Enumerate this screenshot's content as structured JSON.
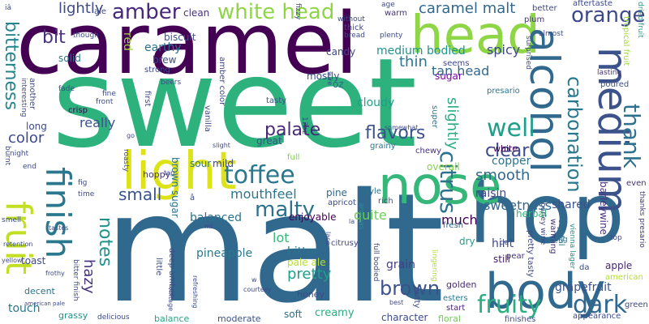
{
  "words": [
    {
      "text": "sweet",
      "color": "#2db27d"
    },
    {
      "text": "malt",
      "color": "#31688e"
    },
    {
      "text": "caramel",
      "color": "#440154"
    },
    {
      "text": "hop",
      "color": "#31688e"
    },
    {
      "text": "light",
      "color": "#dde318"
    },
    {
      "text": "head",
      "color": "#8ed645"
    },
    {
      "text": "nose",
      "color": "#35b779"
    },
    {
      "text": "body",
      "color": "#31688e"
    },
    {
      "text": "alcohol",
      "color": "#31688e"
    },
    {
      "text": "medium",
      "color": "#3b528b"
    },
    {
      "text": "fruit",
      "color": "#c2df23"
    },
    {
      "text": "finish",
      "color": "#2a788e"
    },
    {
      "text": "amber",
      "color": "#482878"
    },
    {
      "text": "white head",
      "color": "#8ed645"
    },
    {
      "text": "orange",
      "color": "#3e4a89"
    },
    {
      "text": "toffee",
      "color": "#2a788e"
    },
    {
      "text": "fruity",
      "color": "#29af7f"
    },
    {
      "text": "dark",
      "color": "#31688e"
    },
    {
      "text": "well",
      "color": "#1f9e89"
    },
    {
      "text": "thank",
      "color": "#2c728e"
    },
    {
      "text": "carbonation",
      "color": "#2a788e"
    },
    {
      "text": "caramel malt",
      "color": "#31688e"
    },
    {
      "text": "citrus",
      "color": "#2c728e"
    },
    {
      "text": "palate",
      "color": "#482878"
    },
    {
      "text": "brown",
      "color": "#3b528b"
    },
    {
      "text": "malty",
      "color": "#2c728e"
    },
    {
      "text": "bitterness",
      "color": "#25858e"
    },
    {
      "text": "flavors",
      "color": "#3b528b"
    },
    {
      "text": "clear",
      "color": "#3e4a89"
    },
    {
      "text": "notes",
      "color": "#20928c"
    },
    {
      "text": "small",
      "color": "#3b528b"
    },
    {
      "text": "color",
      "color": "#3e4a89"
    },
    {
      "text": "smooth",
      "color": "#31688e"
    },
    {
      "text": "pretty",
      "color": "#1f9e89"
    },
    {
      "text": "hazy",
      "color": "#46327e"
    },
    {
      "text": "thin",
      "color": "#2a788e"
    },
    {
      "text": "lightly",
      "color": "#3e4a89"
    },
    {
      "text": "bit",
      "color": "#46327e"
    },
    {
      "text": "mouthfeel",
      "color": "#2a788e"
    },
    {
      "text": "sweetness",
      "color": "#31688e"
    },
    {
      "text": "spicy",
      "color": "#3e4a89"
    },
    {
      "text": "tan head",
      "color": "#31688e"
    },
    {
      "text": "medium bodied",
      "color": "#20928c"
    },
    {
      "text": "slightly",
      "color": "#29af7f"
    },
    {
      "text": "really",
      "color": "#3b528b"
    },
    {
      "text": "balanced",
      "color": "#2c728e"
    },
    {
      "text": "lot",
      "color": "#35b779"
    },
    {
      "text": "much",
      "color": "#440154"
    },
    {
      "text": "quite",
      "color": "#6ece58"
    },
    {
      "text": "raisin",
      "color": "#3e4a89"
    },
    {
      "text": "cloudy",
      "color": "#1f9e89"
    },
    {
      "text": "copper",
      "color": "#2c728e"
    },
    {
      "text": "pineapple",
      "color": "#2a788e"
    },
    {
      "text": "bitter",
      "color": "#2c728e"
    },
    {
      "text": "hint",
      "color": "#3e4a89"
    },
    {
      "text": "grain",
      "color": "#433e85"
    },
    {
      "text": "grapefruit",
      "color": "#3b528b"
    },
    {
      "text": "barleywine",
      "color": "#46327e"
    },
    {
      "text": "shared",
      "color": "#3b528b"
    },
    {
      "text": "touch",
      "color": "#2a788e"
    },
    {
      "text": "soft",
      "color": "#2c728e"
    },
    {
      "text": "creamy",
      "color": "#29af7f"
    },
    {
      "text": "character",
      "color": "#3e4a89"
    },
    {
      "text": "brown sugar",
      "color": "#2c728e"
    },
    {
      "text": "pale ale",
      "color": "#b5de2b"
    },
    {
      "text": "enjoyable",
      "color": "#440154"
    },
    {
      "text": "great",
      "color": "#3b528b"
    },
    {
      "text": "mild",
      "color": "#414487"
    },
    {
      "text": "pine",
      "color": "#31688e"
    },
    {
      "text": "overall",
      "color": "#84d44b"
    },
    {
      "text": "dry",
      "color": "#1f9e89"
    },
    {
      "text": "still",
      "color": "#481a6c"
    },
    {
      "text": "apple",
      "color": "#482878"
    },
    {
      "text": "sugar",
      "color": "#7e03a8"
    },
    {
      "text": "mostly",
      "color": "#3b528b"
    },
    {
      "text": "candy",
      "color": "#3e4a89"
    },
    {
      "text": "earthy",
      "color": "#2c728e"
    },
    {
      "text": "brew",
      "color": "#3e4a89"
    },
    {
      "text": "red",
      "color": "#a0da39"
    },
    {
      "text": "biscuit",
      "color": "#3b528b"
    },
    {
      "text": "clean",
      "color": "#46327e"
    },
    {
      "text": "solid",
      "color": "#2a788e"
    },
    {
      "text": "long",
      "color": "#3e4a89"
    },
    {
      "text": "herbal",
      "color": "#35b779"
    },
    {
      "text": "sour",
      "color": "#2a788e"
    },
    {
      "text": "hoppy",
      "color": "#46327e"
    },
    {
      "text": "toast",
      "color": "#3e4a89"
    },
    {
      "text": "decent",
      "color": "#2c728e"
    },
    {
      "text": "grassy",
      "color": "#20928c"
    },
    {
      "text": "balance",
      "color": "#22a884"
    },
    {
      "text": "moderate",
      "color": "#3b528b"
    },
    {
      "text": "honey",
      "color": "#3e4a89"
    },
    {
      "text": "golden",
      "color": "#482878"
    },
    {
      "text": "floral",
      "color": "#6ece58"
    },
    {
      "text": "esters",
      "color": "#2a788e"
    },
    {
      "text": "start",
      "color": "#482878"
    },
    {
      "text": "finishes",
      "color": "#3e4a89"
    },
    {
      "text": "appearance",
      "color": "#3e4a89"
    },
    {
      "text": "aftertaste",
      "color": "#3e4a89"
    },
    {
      "text": "tasty",
      "color": "#3b528b"
    },
    {
      "text": "warm",
      "color": "#46327e"
    },
    {
      "text": "full",
      "color": "#7ad151"
    },
    {
      "text": "white",
      "color": "#440154"
    },
    {
      "text": "chewy",
      "color": "#46327e"
    },
    {
      "text": "grainy",
      "color": "#2c728e"
    },
    {
      "text": "apricot",
      "color": "#3e4a89"
    },
    {
      "text": "fresh",
      "color": "#31688e"
    },
    {
      "text": "rich",
      "color": "#3b528b"
    },
    {
      "text": "citrusy",
      "color": "#3e4a89"
    },
    {
      "text": "nutty",
      "color": "#3e4a89"
    },
    {
      "text": "super",
      "color": "#2a788e"
    },
    {
      "text": "presario",
      "color": "#2a788e"
    },
    {
      "text": "seems",
      "color": "#3e4a89"
    },
    {
      "text": "oz",
      "color": "#31688e"
    },
    {
      "text": "vanilla",
      "color": "#3e4a89"
    },
    {
      "text": "amber color",
      "color": "#3e4a89"
    },
    {
      "text": "deep amber",
      "color": "#3e4a89"
    },
    {
      "text": "little",
      "color": "#3e4a89"
    },
    {
      "text": "pear",
      "color": "#46327e"
    },
    {
      "text": "pretty tasty",
      "color": "#3e4a89"
    },
    {
      "text": "full bodied",
      "color": "#3e4a89"
    },
    {
      "text": "lingering",
      "color": "#b5de2b"
    },
    {
      "text": "aromas",
      "color": "#20928c"
    },
    {
      "text": "style",
      "color": "#2c728e"
    },
    {
      "text": "warming",
      "color": "#46327e"
    },
    {
      "text": "crystal",
      "color": "#2c728e"
    },
    {
      "text": "tropical fruit",
      "color": "#a0da39"
    },
    {
      "text": "dried fruit",
      "color": "#1f9e89"
    },
    {
      "text": "poured",
      "color": "#3b528b"
    },
    {
      "text": "lasting",
      "color": "#46327e"
    },
    {
      "text": "green",
      "color": "#3e4a89"
    },
    {
      "text": "even",
      "color": "#46327e"
    },
    {
      "text": "thanks presario",
      "color": "#46327e"
    },
    {
      "text": "top",
      "color": "#3e4a89"
    },
    {
      "text": "ring",
      "color": "#2c728e"
    },
    {
      "text": "american",
      "color": "#b5de2b"
    },
    {
      "text": "da",
      "color": "#3e4a89"
    },
    {
      "text": "de",
      "color": "#3e4a89"
    },
    {
      "text": "vienna lager",
      "color": "#20928c"
    },
    {
      "text": "barley wine",
      "color": "#3e4a89"
    },
    {
      "text": "better",
      "color": "#3e4a89"
    },
    {
      "text": "plum",
      "color": "#46327e"
    },
    {
      "text": "surprised",
      "color": "#3e4a89"
    },
    {
      "text": "almost",
      "color": "#3e4a89"
    },
    {
      "text": "another",
      "color": "#3e4a89"
    },
    {
      "text": "interesting",
      "color": "#3e4a89"
    },
    {
      "text": "fade",
      "color": "#3e4a89"
    },
    {
      "text": "crisp",
      "color": "#440154"
    },
    {
      "text": "front",
      "color": "#3e4a89"
    },
    {
      "text": "fine",
      "color": "#3e4a89"
    },
    {
      "text": "first",
      "color": "#3e4a89"
    },
    {
      "text": "strong",
      "color": "#3e4a89"
    },
    {
      "text": "beers",
      "color": "#3e4a89"
    },
    {
      "text": "though",
      "color": "#3e4a89"
    },
    {
      "text": "ale",
      "color": "#3e4a89"
    },
    {
      "text": "fizzy",
      "color": "#3e4a89"
    },
    {
      "text": "thick",
      "color": "#3e4a89"
    },
    {
      "text": "bread",
      "color": "#3e4a89"
    },
    {
      "text": "plenty",
      "color": "#3e4a89"
    },
    {
      "text": "without",
      "color": "#3e4a89"
    },
    {
      "text": "age",
      "color": "#3e4a89"
    },
    {
      "text": "sure",
      "color": "#3e4a89"
    },
    {
      "text": "12oz",
      "color": "#3e4a89"
    },
    {
      "text": "somewhat",
      "color": "#3e4a89"
    },
    {
      "text": "burnt",
      "color": "#3e4a89"
    },
    {
      "text": "night",
      "color": "#3e4a89"
    },
    {
      "text": "end",
      "color": "#3e4a89"
    },
    {
      "text": "fig",
      "color": "#3e4a89"
    },
    {
      "text": "time",
      "color": "#3e4a89"
    },
    {
      "text": "smell",
      "color": "#3e4a89"
    },
    {
      "text": "retention",
      "color": "#3e4a89"
    },
    {
      "text": "yellow",
      "color": "#3e4a89"
    },
    {
      "text": "tastes",
      "color": "#3e4a89"
    },
    {
      "text": "frothy",
      "color": "#3e4a89"
    },
    {
      "text": "bitter finish",
      "color": "#3e4a89"
    },
    {
      "text": "courtesy",
      "color": "#3e4a89"
    },
    {
      "text": "delicious",
      "color": "#3e4a89"
    },
    {
      "text": "vintage",
      "color": "#3e4a89"
    },
    {
      "text": "refreshing",
      "color": "#3e4a89"
    },
    {
      "text": "roasty",
      "color": "#3e4a89"
    },
    {
      "text": "slight",
      "color": "#3e4a89"
    },
    {
      "text": "tap",
      "color": "#3e4a89"
    },
    {
      "text": "lace",
      "color": "#3e4a89"
    },
    {
      "text": "la",
      "color": "#3e4a89"
    },
    {
      "text": "best",
      "color": "#3e4a89"
    },
    {
      "text": "w",
      "color": "#3e4a89"
    },
    {
      "text": "ml",
      "color": "#3e4a89"
    },
    {
      "text": "american pale",
      "color": "#3e4a89"
    },
    {
      "text": "iâ",
      "color": "#3e4a89"
    },
    {
      "text": "â",
      "color": "#3e4a89"
    },
    {
      "text": "go",
      "color": "#3e4a89"
    }
  ]
}
